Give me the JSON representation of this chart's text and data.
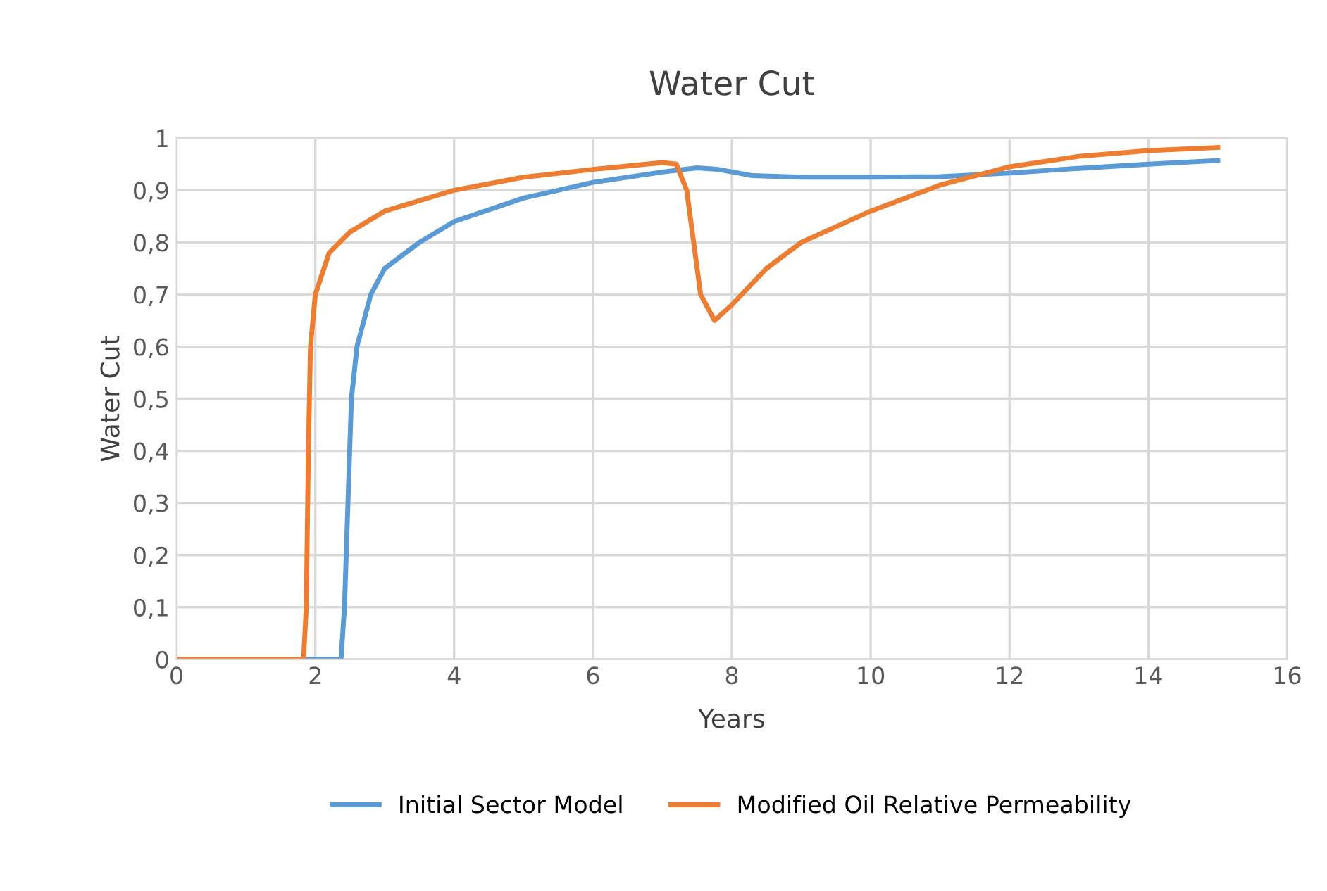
{
  "chart_data": {
    "type": "line",
    "title": "Water Cut",
    "xlabel": "Years",
    "ylabel": "Water Cut",
    "xlim": [
      0,
      16
    ],
    "xticks": [
      0,
      2,
      4,
      6,
      8,
      10,
      12,
      14,
      16
    ],
    "ylim": [
      0,
      1
    ],
    "yticks": [
      0,
      {
        "value": 0.1,
        "label": "0,1"
      },
      {
        "value": 0.2,
        "label": "0,2"
      },
      {
        "value": 0.3,
        "label": "0,3"
      },
      {
        "value": 0.4,
        "label": "0,4"
      },
      {
        "value": 0.5,
        "label": "0,5"
      },
      {
        "value": 0.6,
        "label": "0,6"
      },
      {
        "value": 0.7,
        "label": "0,7"
      },
      {
        "value": 0.8,
        "label": "0,8"
      },
      {
        "value": 0.9,
        "label": "0,9"
      },
      1
    ],
    "grid": true,
    "legend": "bottom",
    "marker": "none",
    "line_style": "solid",
    "series": [
      {
        "name": "Initial Sector Model",
        "color": "#5b9bd5",
        "x": [
          0,
          2.37,
          2.42,
          2.47,
          2.52,
          2.6,
          2.8,
          3,
          3.5,
          4,
          5,
          6,
          7,
          7.5,
          7.8,
          8.3,
          9,
          10,
          11,
          12,
          13,
          14,
          15
        ],
        "values": [
          0,
          0,
          0.1,
          0.3,
          0.5,
          0.6,
          0.7,
          0.75,
          0.8,
          0.84,
          0.885,
          0.915,
          0.935,
          0.943,
          0.94,
          0.928,
          0.925,
          0.925,
          0.926,
          0.933,
          0.942,
          0.95,
          0.957
        ]
      },
      {
        "name": "Modified Oil Relative Permeability",
        "color": "#ed7d31",
        "x": [
          0,
          1.83,
          1.87,
          1.9,
          1.93,
          2,
          2.2,
          2.5,
          3,
          4,
          5,
          6,
          7,
          7.2,
          7.35,
          7.45,
          7.55,
          7.75,
          8,
          8.5,
          9,
          10,
          11,
          12,
          13,
          14,
          15
        ],
        "values": [
          0,
          0,
          0.1,
          0.4,
          0.6,
          0.7,
          0.78,
          0.82,
          0.86,
          0.9,
          0.925,
          0.94,
          0.953,
          0.95,
          0.9,
          0.8,
          0.7,
          0.65,
          0.68,
          0.75,
          0.8,
          0.86,
          0.91,
          0.945,
          0.965,
          0.976,
          0.982
        ]
      }
    ]
  }
}
